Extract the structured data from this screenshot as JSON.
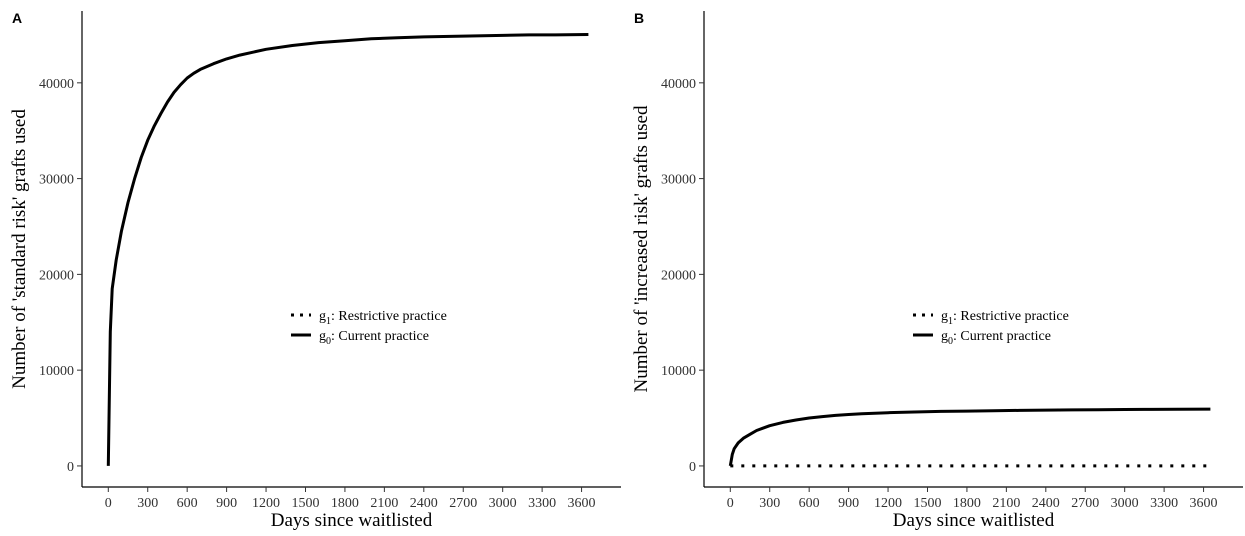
{
  "chart_data": [
    {
      "panel_label": "A",
      "type": "line",
      "xlabel": "Days since waitlisted",
      "ylabel": "Number of 'standard risk' grafts used",
      "xlim": [
        -200,
        3900
      ],
      "ylim": [
        -2200,
        47500
      ],
      "x_ticks": [
        0,
        300,
        600,
        900,
        1200,
        1500,
        1800,
        2100,
        2400,
        2700,
        3000,
        3300,
        3600
      ],
      "y_ticks": [
        0,
        10000,
        20000,
        30000,
        40000
      ],
      "legend": {
        "position": "center",
        "entries": [
          {
            "symbol": "g",
            "subscript": "1",
            "text": ": Restrictive practice",
            "style": "dotted"
          },
          {
            "symbol": "g",
            "subscript": "0",
            "text": ": Current practice",
            "style": "solid"
          }
        ]
      },
      "series": [
        {
          "line_style": "solid",
          "color": "#000000",
          "x": [
            0,
            15,
            30,
            60,
            100,
            150,
            200,
            250,
            300,
            350,
            400,
            450,
            500,
            550,
            600,
            650,
            700,
            800,
            900,
            1000,
            1200,
            1400,
            1600,
            1800,
            2000,
            2200,
            2400,
            2600,
            2800,
            3000,
            3200,
            3400,
            3652
          ],
          "y": [
            0,
            14000,
            18500,
            21500,
            24500,
            27500,
            30000,
            32200,
            34000,
            35500,
            36800,
            38000,
            39000,
            39800,
            40500,
            41000,
            41400,
            42000,
            42500,
            42900,
            43500,
            43900,
            44200,
            44400,
            44600,
            44700,
            44800,
            44850,
            44900,
            44950,
            45000,
            45000,
            45050
          ]
        }
      ]
    },
    {
      "panel_label": "B",
      "type": "line",
      "xlabel": "Days since waitlisted",
      "ylabel": "Number of 'increased risk' grafts used",
      "xlim": [
        -200,
        3900
      ],
      "ylim": [
        -2200,
        47500
      ],
      "x_ticks": [
        0,
        300,
        600,
        900,
        1200,
        1500,
        1800,
        2100,
        2400,
        2700,
        3000,
        3300,
        3600
      ],
      "y_ticks": [
        0,
        10000,
        20000,
        30000,
        40000
      ],
      "legend": {
        "position": "center",
        "entries": [
          {
            "symbol": "g",
            "subscript": "1",
            "text": ": Restrictive practice",
            "style": "dotted"
          },
          {
            "symbol": "g",
            "subscript": "0",
            "text": ": Current practice",
            "style": "solid"
          }
        ]
      },
      "series": [
        {
          "line_style": "solid",
          "color": "#000000",
          "x": [
            0,
            15,
            30,
            60,
            100,
            150,
            200,
            300,
            400,
            500,
            600,
            700,
            800,
            900,
            1000,
            1200,
            1400,
            1600,
            1800,
            2000,
            2200,
            2400,
            2600,
            2800,
            3000,
            3200,
            3400,
            3652
          ],
          "y": [
            0,
            1200,
            1800,
            2400,
            2900,
            3300,
            3700,
            4200,
            4550,
            4800,
            5000,
            5150,
            5280,
            5370,
            5450,
            5560,
            5630,
            5690,
            5730,
            5770,
            5800,
            5830,
            5850,
            5870,
            5890,
            5900,
            5910,
            5930
          ]
        },
        {
          "line_style": "dotted",
          "color": "#000000",
          "x": [
            0,
            3652
          ],
          "y": [
            0,
            0
          ]
        }
      ]
    }
  ]
}
